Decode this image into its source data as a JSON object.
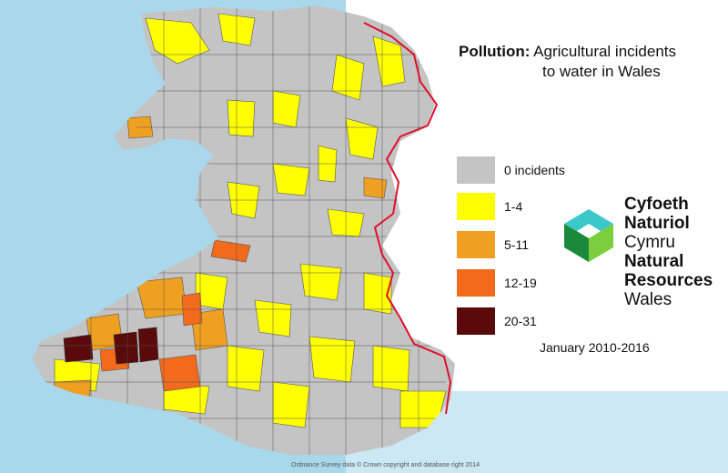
{
  "title": {
    "bold": "Pollution:",
    "line1": "Agricultural incidents",
    "line2": "to water in Wales"
  },
  "legend": [
    {
      "label": "0 incidents",
      "color": "#c4c4c4"
    },
    {
      "label": "1-4",
      "color": "#ffff00"
    },
    {
      "label": "5-11",
      "color": "#f0a020"
    },
    {
      "label": "12-19",
      "color": "#f26a1b"
    },
    {
      "label": "20-31",
      "color": "#5a0a0a"
    }
  ],
  "logo": {
    "line1": "Cyfoeth",
    "line2": "Naturiol",
    "line3": "Cymru",
    "line4": "Natural",
    "line5": "Resources",
    "line6": "Wales",
    "icon": "cyfoeth-naturiol-logo-icon"
  },
  "date": "January 2010-2016",
  "credit": "Ordnance Survey data © Crown copyright and database right 2014",
  "colors": {
    "sea": "#a9d8ec",
    "land": "#c4c4c4",
    "border": "#e0102a",
    "catchment_lines": "#555555"
  }
}
